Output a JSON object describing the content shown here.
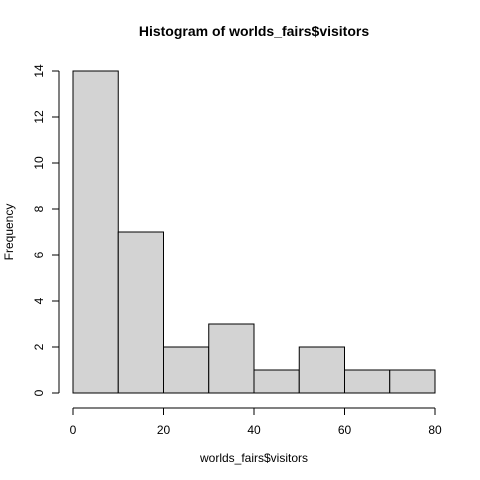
{
  "chart_data": {
    "type": "bar",
    "title": "Histogram of worlds_fairs$visitors",
    "xlabel": "worlds_fairs$visitors",
    "ylabel": "Frequency",
    "bins": [
      {
        "start": 0,
        "end": 10,
        "count": 14
      },
      {
        "start": 10,
        "end": 20,
        "count": 7
      },
      {
        "start": 20,
        "end": 30,
        "count": 2
      },
      {
        "start": 30,
        "end": 40,
        "count": 3
      },
      {
        "start": 40,
        "end": 50,
        "count": 1
      },
      {
        "start": 50,
        "end": 60,
        "count": 2
      },
      {
        "start": 60,
        "end": 70,
        "count": 1
      },
      {
        "start": 70,
        "end": 80,
        "count": 1
      }
    ],
    "xlim": [
      0,
      80
    ],
    "ylim": [
      0,
      14
    ],
    "xticks": [
      0,
      20,
      40,
      60,
      80
    ],
    "yticks": [
      0,
      2,
      4,
      6,
      8,
      10,
      12,
      14
    ],
    "bar_color": "#d3d3d3",
    "grid": false
  }
}
